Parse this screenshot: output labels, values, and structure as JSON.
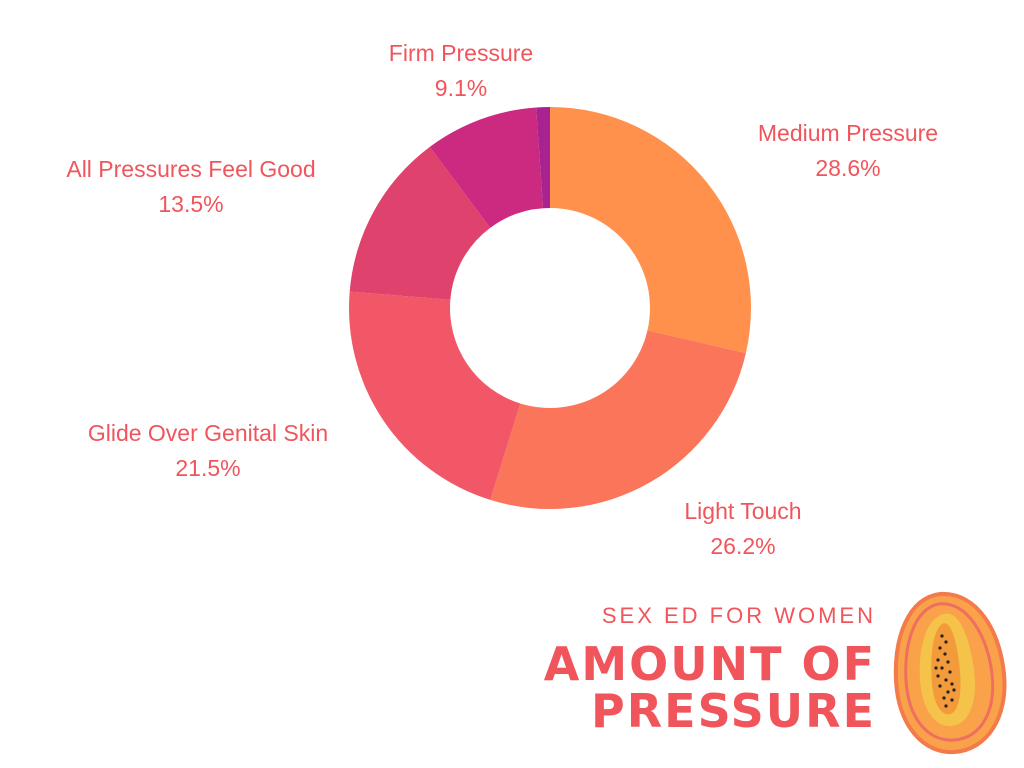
{
  "chart_data": {
    "type": "pie",
    "title": "",
    "categories": [
      "Medium Pressure",
      "Light Touch",
      "Glide Over Genital Skin",
      "All Pressures Feel Good",
      "Firm Pressure",
      ""
    ],
    "values": [
      28.6,
      26.2,
      21.5,
      13.5,
      9.1,
      1.1
    ],
    "labels": [
      "28.6%",
      "26.2%",
      "21.5%",
      "13.5%",
      "9.1%",
      ""
    ],
    "colors": [
      "#ff914d",
      "#fa755a",
      "#f25768",
      "#e0426e",
      "#cc2a80",
      "#a82390"
    ],
    "label_color": "#f0555c",
    "donut": true
  },
  "branding": {
    "subtitle": "SEX ED FOR WOMEN",
    "title_line1": "AMOUNT OF",
    "title_line2": "PRESSURE",
    "subtitle_color": "#f0555c",
    "title_color": "#f0555c"
  }
}
